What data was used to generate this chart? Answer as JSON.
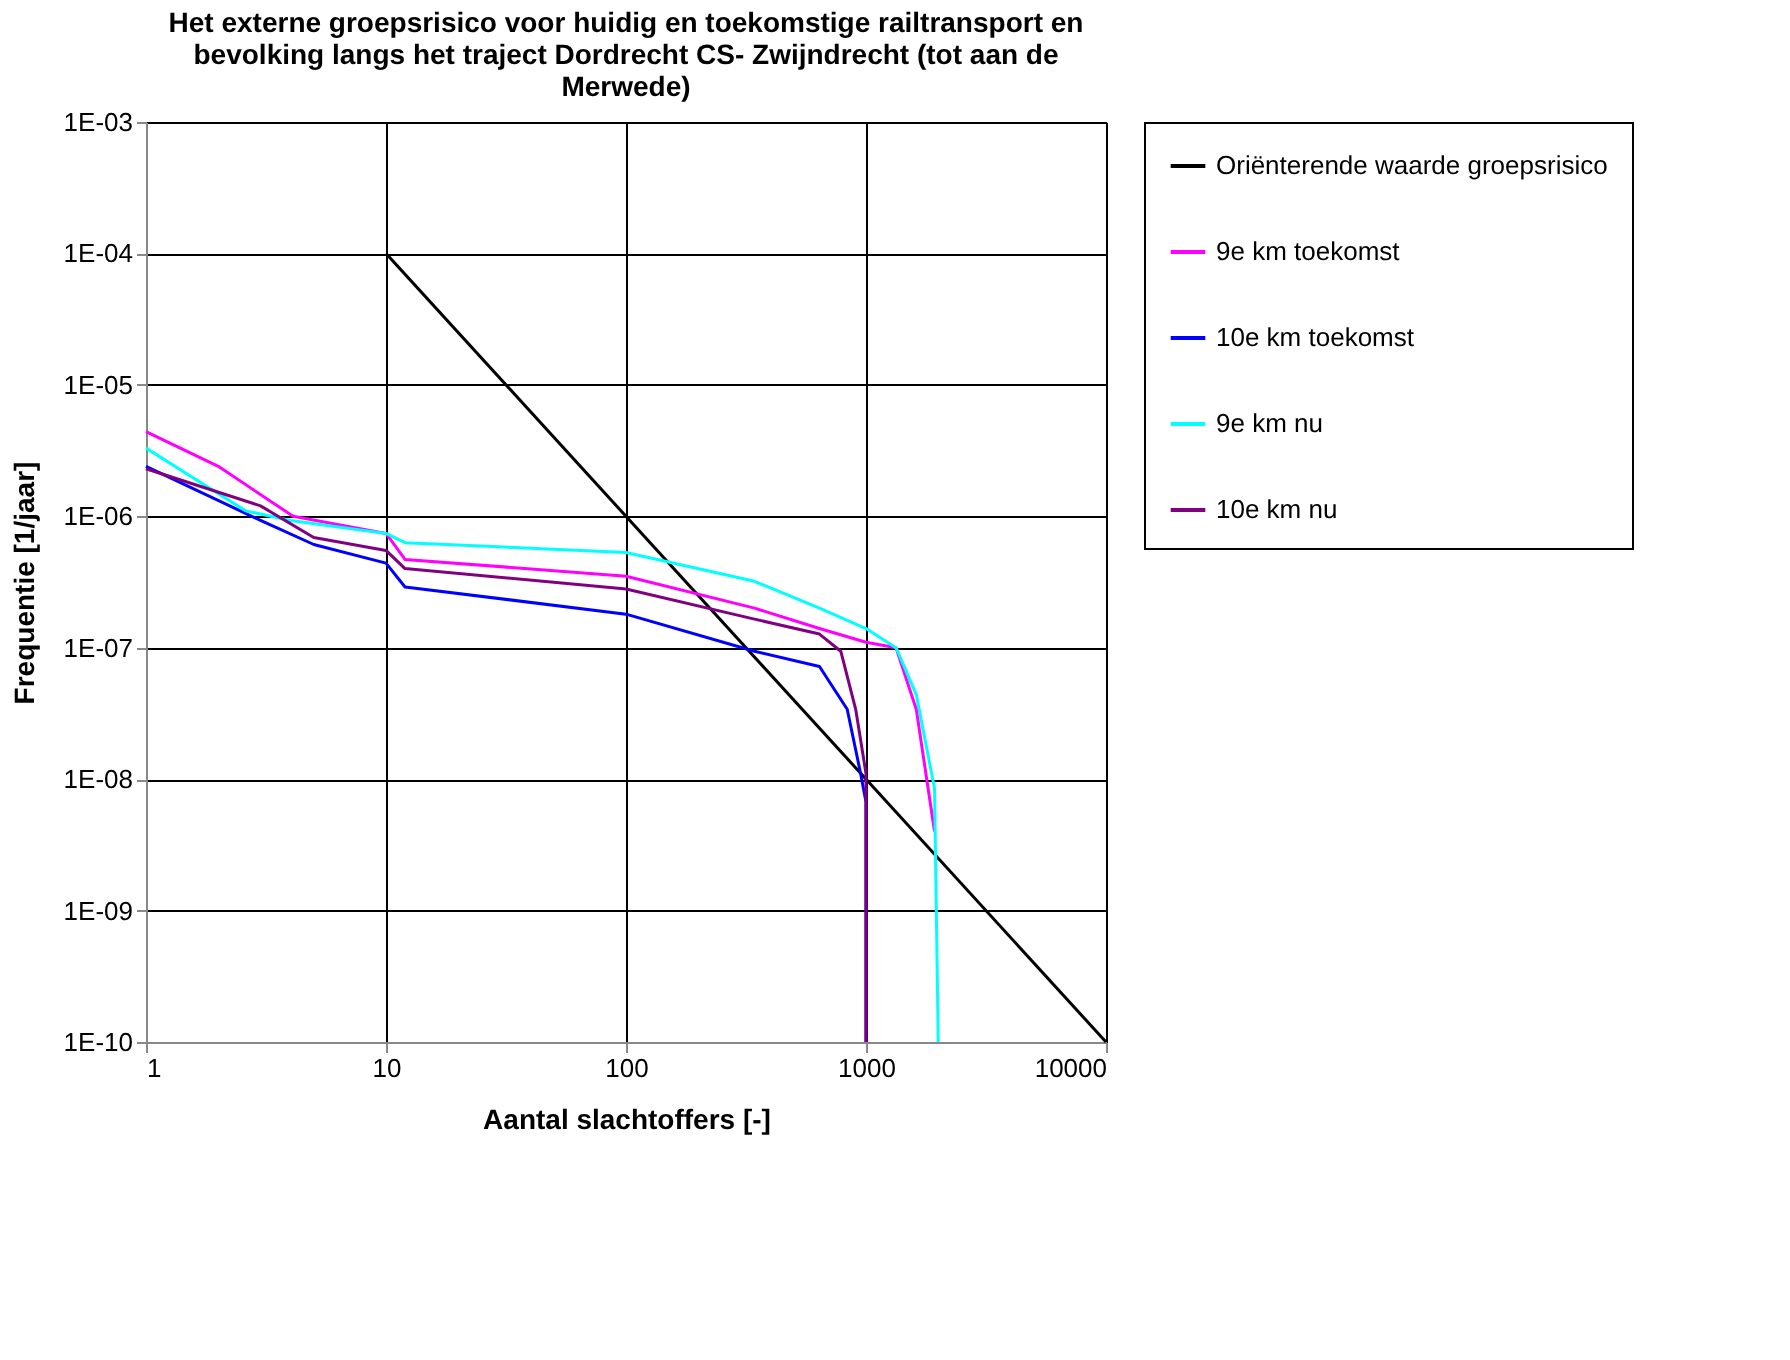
{
  "chart_data": {
    "type": "line",
    "title": [
      "Het externe groepsrisico voor huidig en toekomstige railtransport en",
      "bevolking langs het traject Dordrecht CS- Zwijndrecht (tot aan de",
      "Merwede)"
    ],
    "xlabel": "Aantal slachtoffers [-]",
    "ylabel": "Frequentie [1/jaar]",
    "log": "xy",
    "grid": true,
    "legend": "right",
    "line_style": "solid",
    "marker": "none",
    "xlim": [
      1,
      10000
    ],
    "xticks": [
      1,
      10,
      100,
      1000,
      10000
    ],
    "ylim": [
      1e-10,
      0.001
    ],
    "yticks": [
      {
        "value": 1e-10,
        "label": "1E-10"
      },
      {
        "value": 1e-09,
        "label": "1E-09"
      },
      {
        "value": 1e-08,
        "label": "1E-08"
      },
      {
        "value": 1e-07,
        "label": "1E-07"
      },
      {
        "value": 1e-06,
        "label": "1E-06"
      },
      {
        "value": 1e-05,
        "label": "1E-05"
      },
      {
        "value": 0.0001,
        "label": "1E-04"
      },
      {
        "value": 0.001,
        "label": "1E-03"
      }
    ],
    "series": [
      {
        "name": "Oriënterende waarde groepsrisico",
        "color": "#000000",
        "x": [
          10,
          10000
        ],
        "values": [
          0.0001,
          1e-10
        ]
      },
      {
        "name": "9e km toekomst",
        "color": "#ff00ff",
        "x": [
          1,
          2,
          4.1,
          10,
          12,
          100,
          343,
          640,
          1000,
          1334,
          1620,
          1930
        ],
        "values": [
          4.4e-06,
          2.4e-06,
          1e-06,
          7.4e-07,
          4.7e-07,
          3.5e-07,
          2e-07,
          1.4e-07,
          1.1e-07,
          1e-07,
          3.4e-08,
          4e-09
        ]
      },
      {
        "name": "10e km toekomst",
        "color": "#0000ff",
        "x": [
          1,
          3,
          5,
          10,
          12,
          100,
          343,
          640,
          835,
          950,
          1000,
          1000
        ],
        "values": [
          2.4e-06,
          9.3e-07,
          6.1e-07,
          4.4e-07,
          2.9e-07,
          1.8e-07,
          9.4e-08,
          7.2e-08,
          3.4e-08,
          1.1e-08,
          6.7e-09,
          1e-10
        ]
      },
      {
        "name": "9e km nu",
        "color": "#00ffff",
        "x": [
          1,
          2.6,
          4,
          10,
          12,
          100,
          343,
          640,
          1000,
          1334,
          1620,
          1930,
          2000
        ],
        "values": [
          3.3e-06,
          1.1e-06,
          9.3e-07,
          7.4e-07,
          6.3e-07,
          5.3e-07,
          3.2e-07,
          2e-07,
          1.4e-07,
          1e-07,
          4.4e-08,
          8.5e-09,
          1e-10
        ]
      },
      {
        "name": "10e km nu",
        "color": "#800080",
        "x": [
          1,
          3,
          5,
          10,
          12,
          100,
          343,
          640,
          785,
          906,
          1000,
          1000
        ],
        "values": [
          2.3e-06,
          1.2e-06,
          6.9e-07,
          5.5e-07,
          4e-07,
          2.8e-07,
          1.65e-07,
          1.27e-07,
          9.4e-08,
          3.4e-08,
          1.1e-08,
          1e-10
        ]
      }
    ]
  }
}
